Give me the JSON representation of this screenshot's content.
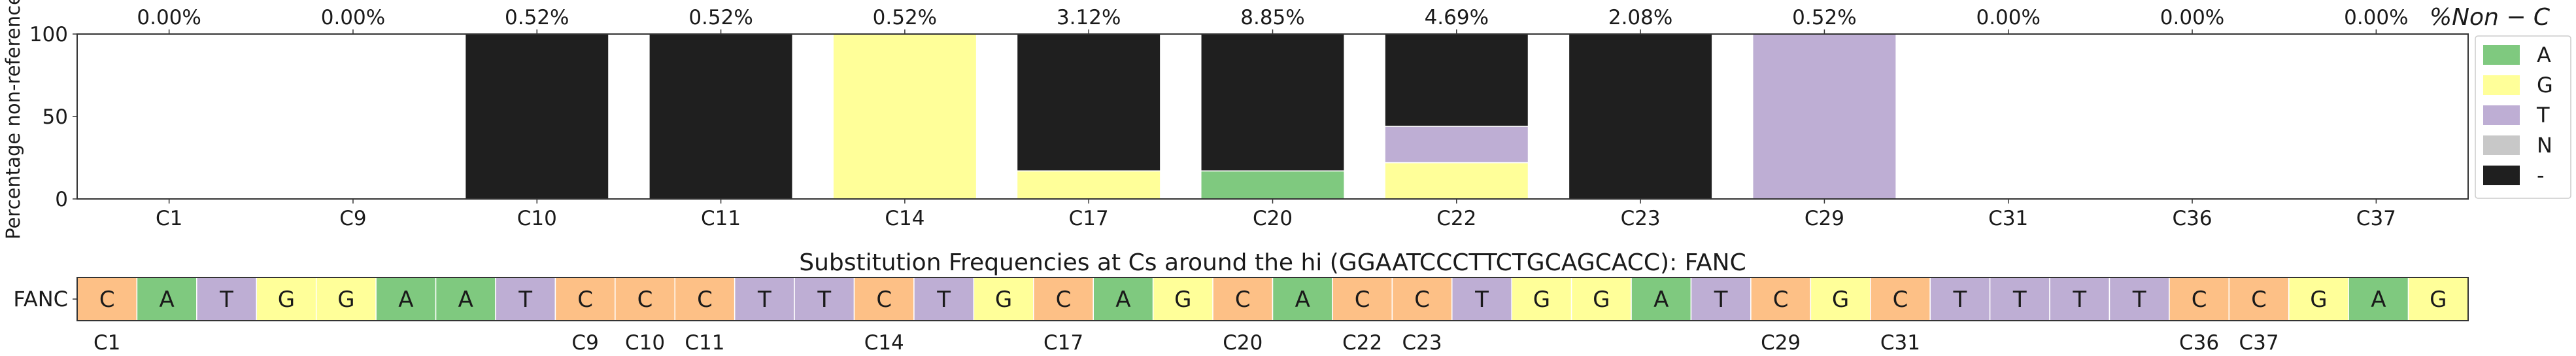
{
  "chart_data": [
    {
      "type": "bar",
      "stacked": true,
      "categories": [
        "C1",
        "C9",
        "C10",
        "C11",
        "C14",
        "C17",
        "C20",
        "C22",
        "C23",
        "C29",
        "C31",
        "C36",
        "C37"
      ],
      "top_labels": [
        "0.00%",
        "0.00%",
        "0.52%",
        "0.52%",
        "0.52%",
        "3.12%",
        "8.85%",
        "4.69%",
        "2.08%",
        "0.52%",
        "0.00%",
        "0.00%",
        "0.00%"
      ],
      "top_axis_title": "%Non − C",
      "ylabel": "Percentage non-reference",
      "yticks": [
        "0",
        "50",
        "100"
      ],
      "ylim": [
        0,
        100
      ],
      "series": [
        {
          "name": "A",
          "color": "#7fc97f",
          "values": [
            0,
            0,
            0,
            0,
            0,
            0,
            17,
            0,
            0,
            0,
            0,
            0,
            0
          ]
        },
        {
          "name": "G",
          "color": "#ffff99",
          "values": [
            0,
            0,
            0,
            0,
            100,
            17,
            0,
            22,
            0,
            0,
            0,
            0,
            0
          ]
        },
        {
          "name": "T",
          "color": "#beaed4",
          "values": [
            0,
            0,
            0,
            0,
            0,
            0,
            0,
            22,
            0,
            100,
            0,
            0,
            0
          ]
        },
        {
          "name": "N",
          "color": "#c8c8c8",
          "values": [
            0,
            0,
            0,
            0,
            0,
            0,
            0,
            0,
            0,
            0,
            0,
            0,
            0
          ]
        },
        {
          "name": "-",
          "color": "#1f1f1f",
          "values": [
            0,
            0,
            100,
            100,
            0,
            83,
            83,
            56,
            100,
            0,
            0,
            0,
            0
          ]
        }
      ],
      "legend_position": "right"
    },
    {
      "type": "heatmap",
      "title": "Substitution Frequencies at Cs around the hi (GGAATCCCTTCTGCAGCACC): FANC",
      "row_label": "FANC",
      "sequence": [
        "C",
        "A",
        "T",
        "G",
        "G",
        "A",
        "A",
        "T",
        "C",
        "C",
        "C",
        "T",
        "T",
        "C",
        "T",
        "G",
        "C",
        "A",
        "G",
        "C",
        "A",
        "C",
        "C",
        "T",
        "G",
        "G",
        "A",
        "T",
        "C",
        "G",
        "C",
        "T",
        "T",
        "T",
        "T",
        "C",
        "C",
        "G",
        "A",
        "G"
      ],
      "position_labels": [
        "C1",
        "",
        "",
        "",
        "",
        "",
        "",
        "",
        "C9",
        "C10",
        "C11",
        "",
        "",
        "C14",
        "",
        "",
        "C17",
        "",
        "",
        "C20",
        "",
        "C22",
        "C23",
        "",
        "",
        "",
        "",
        "",
        "C29",
        "",
        "C31",
        "",
        "",
        "",
        "",
        "C36",
        "C37",
        "",
        "",
        ""
      ],
      "base_colors": {
        "A": "#7fc97f",
        "C": "#fdc086",
        "G": "#ffff99",
        "T": "#beaed4"
      }
    }
  ]
}
